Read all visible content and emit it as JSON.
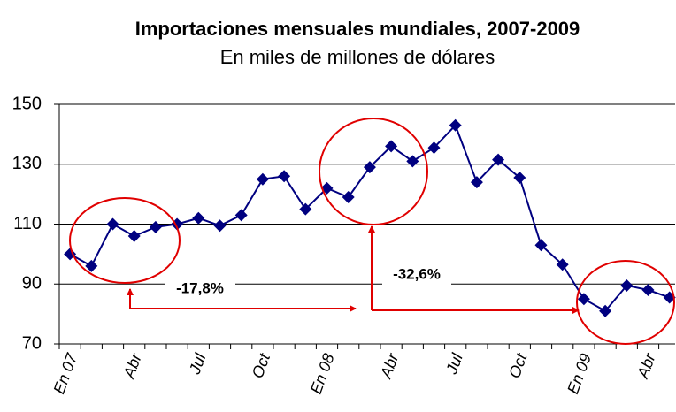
{
  "chart_data": {
    "type": "line",
    "title": "Importaciones mensuales mundiales, 2007-2009",
    "subtitle": "En miles de millones de dólares",
    "categories": [
      "En 07",
      null,
      null,
      "Abr",
      null,
      null,
      "Jul",
      null,
      null,
      "Oct",
      null,
      null,
      "En 08",
      null,
      null,
      "Abr",
      null,
      null,
      "Jul",
      null,
      null,
      "Oct",
      null,
      null,
      "En 09",
      null,
      null,
      "Abr",
      null
    ],
    "series": [
      {
        "name": "Importaciones",
        "color": "#000080",
        "values": [
          100,
          96,
          110,
          106,
          109,
          110,
          112,
          109.5,
          113,
          125,
          126,
          115,
          122,
          119,
          129,
          136,
          131,
          135.5,
          143,
          124,
          131.5,
          125.5,
          103,
          96.5,
          85,
          81,
          89.5,
          88,
          85.5
        ]
      }
    ],
    "ylim": [
      70,
      150
    ],
    "yticks": [
      70,
      90,
      110,
      130,
      150
    ],
    "grid": true,
    "annotations": [
      "-17,8%",
      "-32,6%"
    ]
  }
}
